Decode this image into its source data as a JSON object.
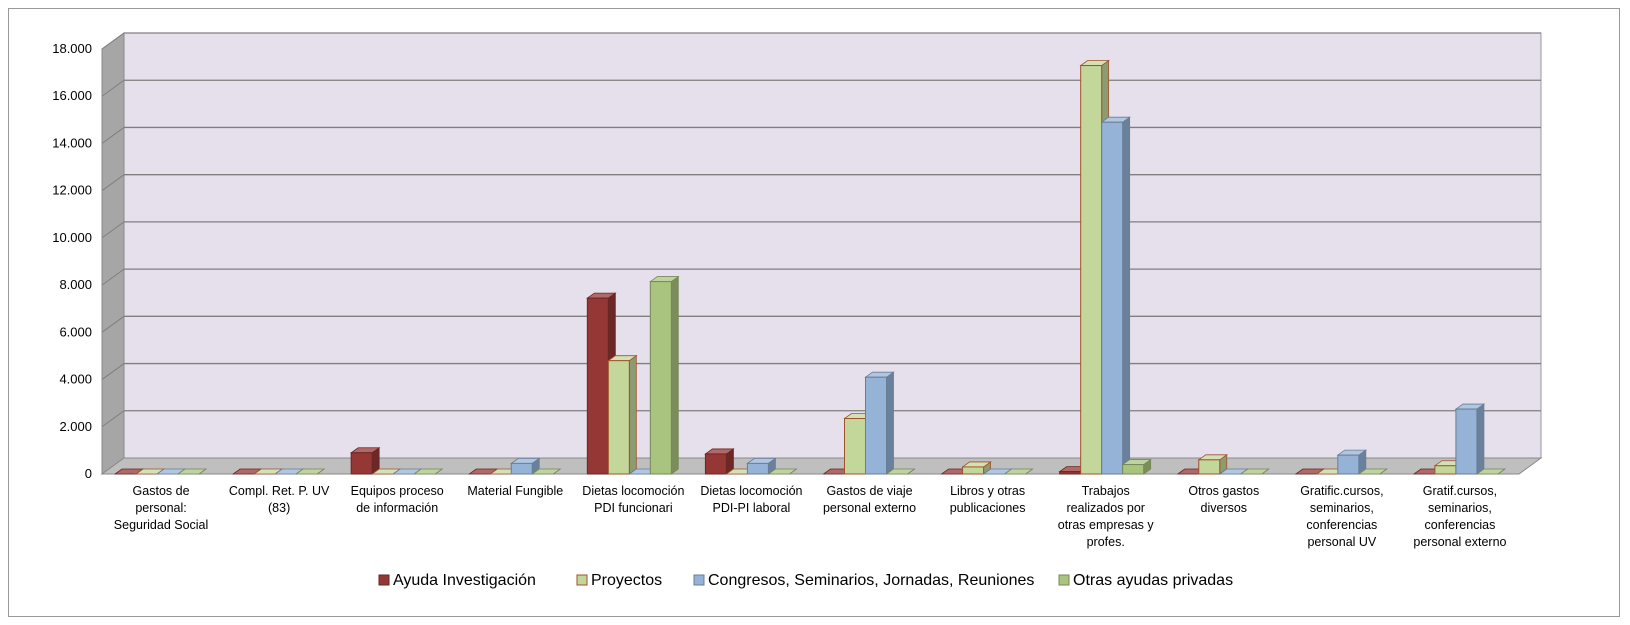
{
  "chart_data": {
    "type": "bar",
    "categories": [
      [
        "Gastos de",
        "personal:",
        "Seguridad Social"
      ],
      [
        "Compl. Ret. P. UV",
        "(83)"
      ],
      [
        "Equipos proceso",
        "de información"
      ],
      [
        "Material Fungible"
      ],
      [
        "Dietas locomoción",
        "PDI funcionari"
      ],
      [
        "Dietas locomoción",
        "PDI-PI laboral"
      ],
      [
        "Gastos de viaje",
        "personal externo"
      ],
      [
        "Libros y otras",
        "publicaciones"
      ],
      [
        "Trabajos",
        "realizados por",
        "otras empresas y",
        "profes."
      ],
      [
        "Otros gastos",
        "diversos"
      ],
      [
        "Gratific.cursos,",
        "seminarios,",
        "conferencias",
        "personal UV"
      ],
      [
        "Gratif.cursos,",
        "seminarios,",
        "conferencias",
        "personal externo"
      ]
    ],
    "series": [
      {
        "name": "Ayuda  Investigación",
        "color": "#953735",
        "values": [
          0,
          0,
          900,
          0,
          7450,
          850,
          0,
          0,
          100,
          0,
          0,
          0
        ]
      },
      {
        "name": "Proyectos",
        "color": "#c4d79b",
        "values": [
          0,
          0,
          0,
          0,
          4800,
          0,
          2350,
          300,
          17300,
          600,
          0,
          350
        ]
      },
      {
        "name": "Congresos, Seminarios, Jornadas, Reuniones",
        "color": "#95b3d7",
        "values": [
          0,
          0,
          0,
          450,
          0,
          450,
          4100,
          0,
          14900,
          0,
          800,
          2750
        ]
      },
      {
        "name": "Otras ayudas privadas",
        "color": "#a9c47f",
        "values": [
          0,
          0,
          0,
          0,
          8150,
          0,
          0,
          0,
          400,
          0,
          0,
          0
        ]
      }
    ],
    "ylim": [
      0,
      18000
    ],
    "yticks": [
      "0",
      "2.000",
      "4.000",
      "6.000",
      "8.000",
      "10.000",
      "12.000",
      "14.000",
      "16.000",
      "18.000"
    ],
    "ytick_step": 2000,
    "grid": true,
    "legend_position": "bottom",
    "colors": {
      "wall": "#e6e0ec",
      "side_wall": "#a6a6a6",
      "floor": "#bfbfbf",
      "grid": "#7f7f7f"
    }
  }
}
